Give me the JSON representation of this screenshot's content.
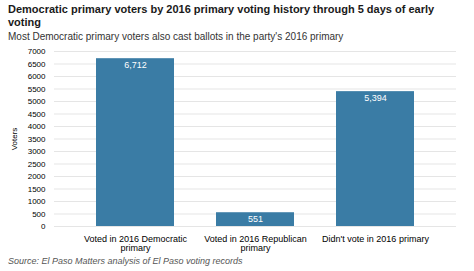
{
  "chart_data": {
    "type": "bar",
    "title": "Democratic primary voters by 2016 primary voting history through 5 days of early voting",
    "subtitle": "Most Democratic primary voters also cast ballots in the party's 2016 primary",
    "source": "Source: El Paso Matters analysis of El Paso voting records",
    "categories": [
      "Voted in 2016 Democratic primary",
      "Voted in 2016 Republican primary",
      "Didn't vote in 2016 primary"
    ],
    "values": [
      6712,
      551,
      5394
    ],
    "value_labels": [
      "6,712",
      "551",
      "5,394"
    ],
    "data_labels": true,
    "color": "#3a7ca5",
    "ylabel": "Voters",
    "ylim": [
      0,
      7000
    ],
    "yticks": [
      0,
      500,
      1000,
      1500,
      2000,
      2500,
      3000,
      3500,
      4000,
      4500,
      5000,
      5500,
      6000,
      6500,
      7000
    ],
    "grid": true
  }
}
